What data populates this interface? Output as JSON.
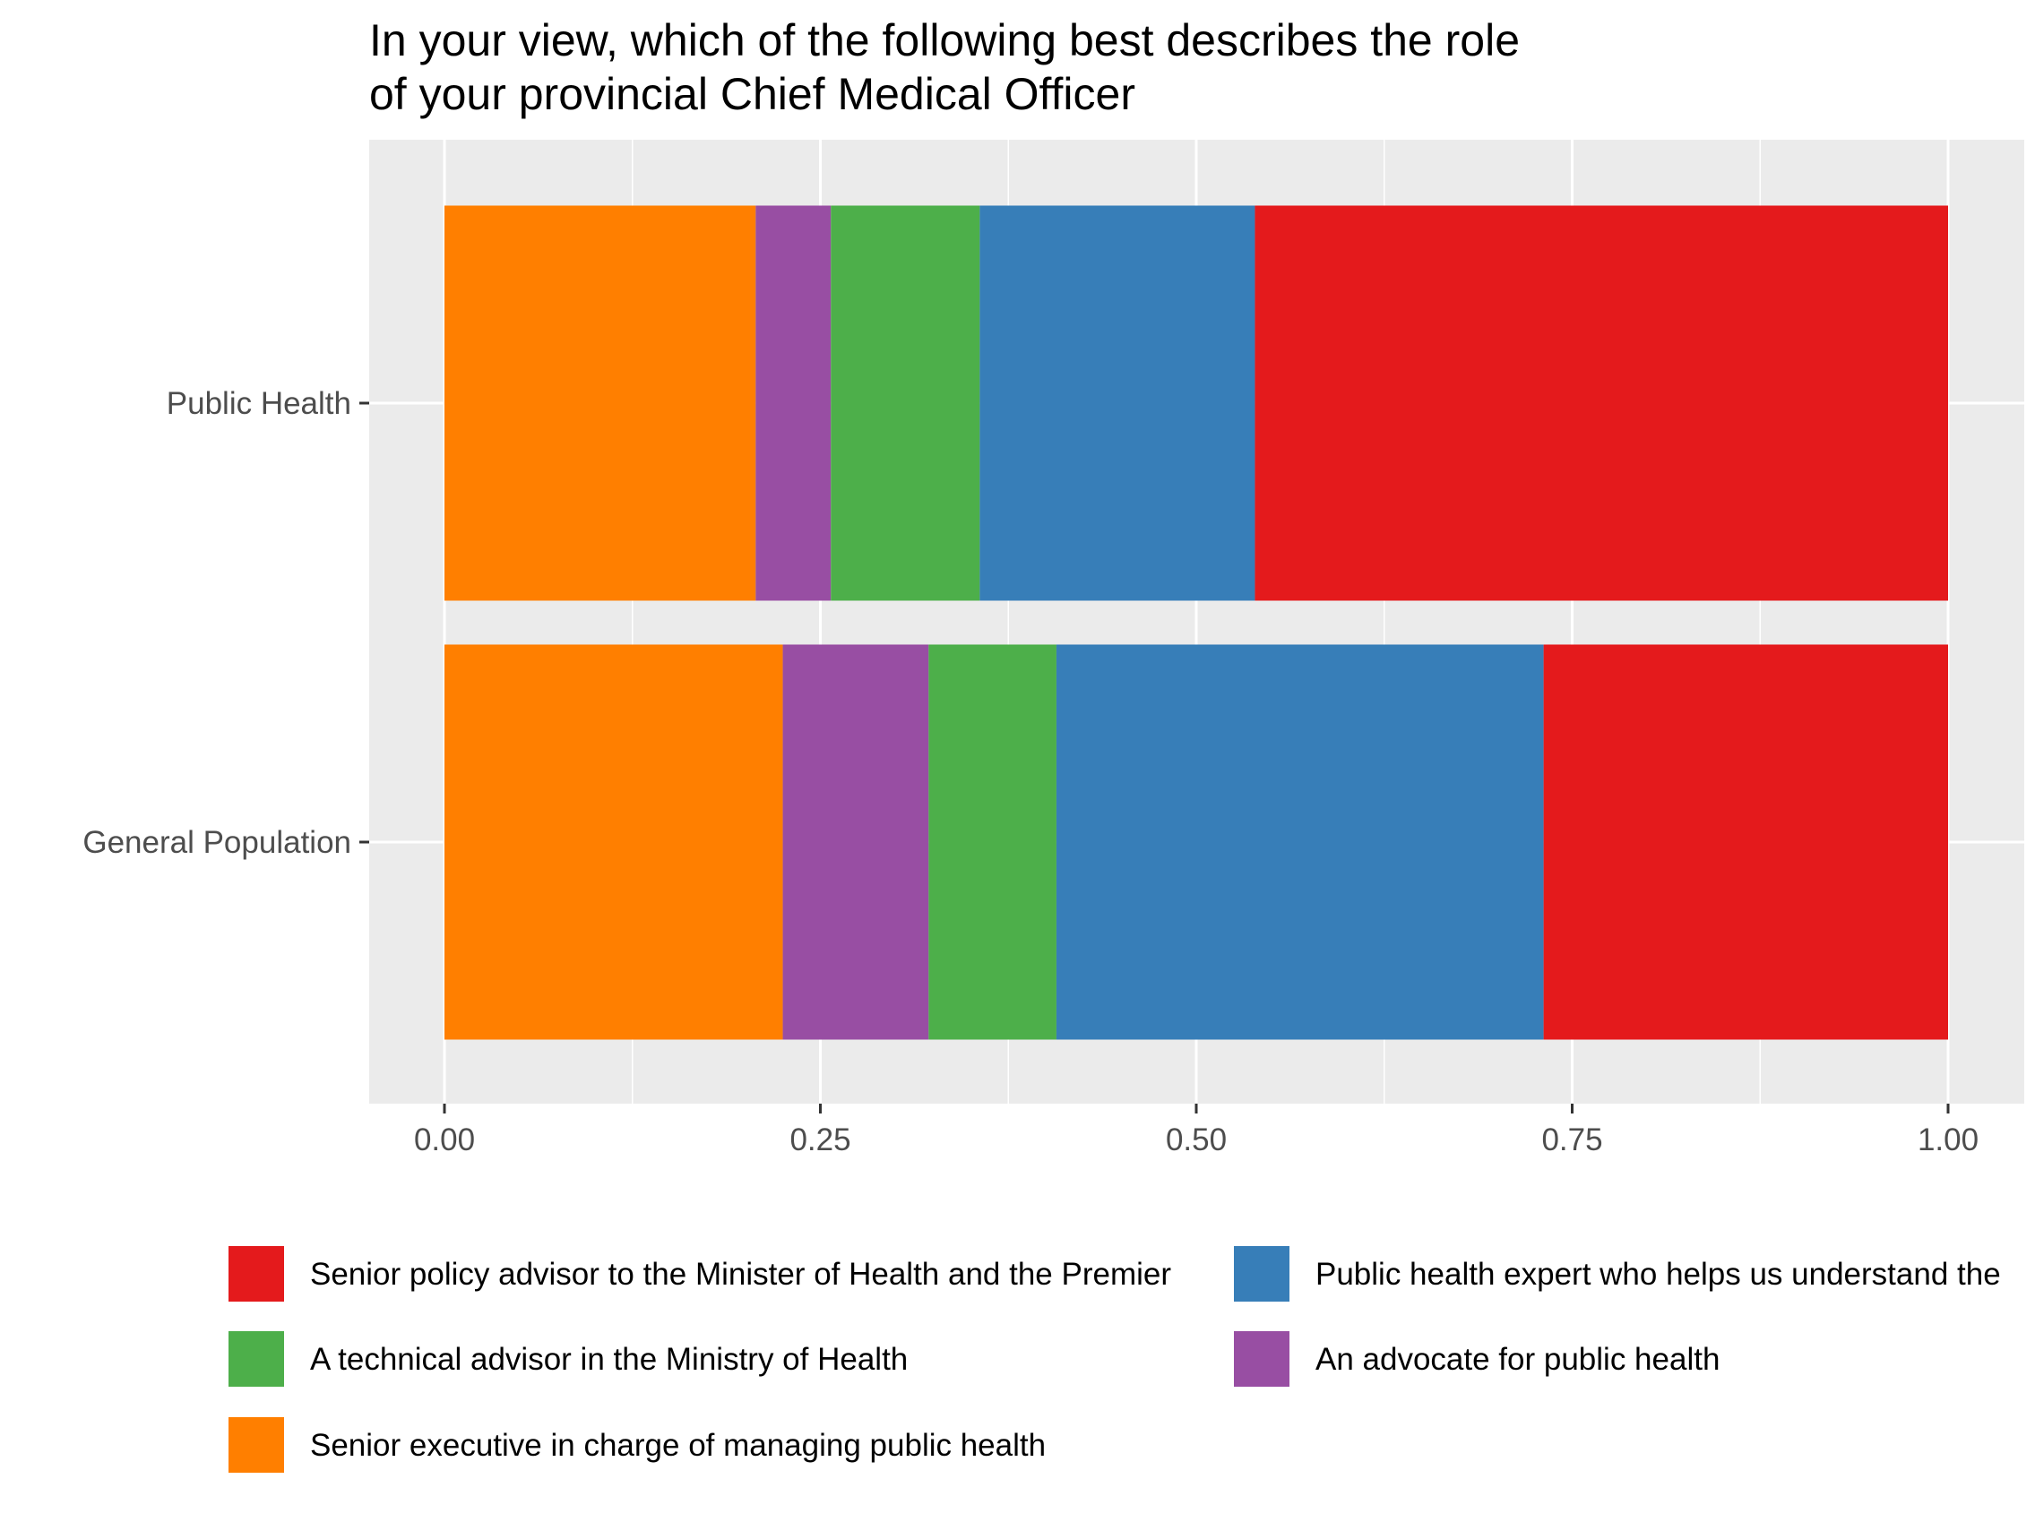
{
  "chart_data": {
    "type": "bar",
    "orientation": "horizontal",
    "stacked": true,
    "title": "In your view, which of the following best describes the role of your provincial Chief Medical Officer",
    "title_lines": [
      "In your view, which of the following best describes the role",
      "of your provincial Chief Medical Officer"
    ],
    "xlabel": "",
    "ylabel": "",
    "xlim": [
      0,
      1
    ],
    "x_ticks": [
      0,
      0.25,
      0.5,
      0.75,
      1.0
    ],
    "x_tick_labels": [
      "0.00",
      "0.25",
      "0.50",
      "0.75",
      "1.00"
    ],
    "categories": [
      "Public Health",
      "General Population"
    ],
    "grid": true,
    "legend_position": "bottom",
    "series": [
      {
        "name": "Senior executive in charge of managing public health",
        "color": "#FF7F00",
        "values": [
          0.207,
          0.225
        ]
      },
      {
        "name": "An advocate for public health",
        "color": "#984EA3",
        "values": [
          0.05,
          0.097
        ]
      },
      {
        "name": "A technical advisor in the Ministry of Health",
        "color": "#4DAF4A",
        "values": [
          0.099,
          0.085
        ]
      },
      {
        "name": "Public health expert who helps us understand the",
        "color": "#377EB8",
        "values": [
          0.183,
          0.324
        ]
      },
      {
        "name": "Senior policy advisor to the Minister of Health and the Premier",
        "color": "#E41A1C",
        "values": [
          0.461,
          0.269
        ]
      }
    ],
    "legend_order": [
      "Senior policy advisor to the Minister of Health and the Premier",
      "Public health expert who helps us understand the",
      "A technical advisor in the Ministry of Health",
      "An advocate for public health",
      "Senior executive in charge of managing public health"
    ],
    "colors": {
      "panel": "#EBEBEB",
      "grid": "#FFFFFF",
      "axis_text": "#4D4D4D"
    }
  }
}
